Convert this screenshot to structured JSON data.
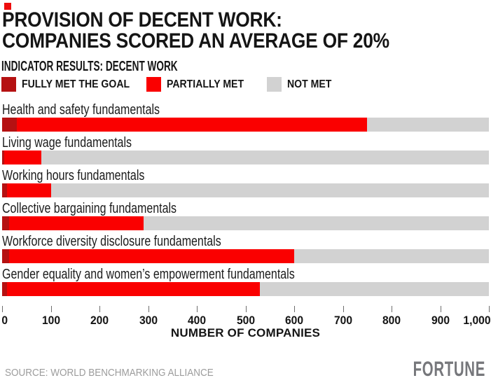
{
  "brand": {
    "square_color": "#ee0d0d",
    "logo_text": "FORTUNE"
  },
  "header": {
    "title_line1": "PROVISION OF DECENT WORK:",
    "title_line2": "COMPANIES SCORED AN AVERAGE OF 20%",
    "subhead": "INDICATOR RESULTS: DECENT WORK"
  },
  "legend": [
    {
      "label": "FULLY MET THE GOAL",
      "color": "#b51112"
    },
    {
      "label": "PARTIALLY MET",
      "color": "#fa0000"
    },
    {
      "label": "NOT MET",
      "color": "#d2d2d2"
    }
  ],
  "chart_data": {
    "type": "bar",
    "stacked": true,
    "horizontal": true,
    "title": "INDICATOR RESULTS: DECENT WORK",
    "categories": [
      "Health and safety fundamentals",
      "Living wage fundamentals",
      "Working hours fundamentals",
      "Collective bargaining fundamentals",
      "Workforce diversity disclosure fundamentals",
      "Gender equality and women’s empowerment fundamentals"
    ],
    "series": [
      {
        "name": "FULLY MET THE GOAL",
        "color": "#b51112",
        "values": [
          30,
          5,
          10,
          15,
          15,
          10
        ]
      },
      {
        "name": "PARTIALLY MET",
        "color": "#fa0000",
        "values": [
          720,
          75,
          90,
          275,
          585,
          520
        ]
      },
      {
        "name": "NOT MET",
        "color": "#d2d2d2",
        "values": [
          250,
          920,
          900,
          710,
          400,
          470
        ]
      }
    ],
    "xlabel": "NUMBER OF COMPANIES",
    "xlim": [
      0,
      1000
    ],
    "tick_values": [
      0,
      100,
      200,
      300,
      400,
      500,
      600,
      700,
      800,
      900,
      1000
    ],
    "tick_labels": [
      "0",
      "100",
      "200",
      "300",
      "400",
      "500",
      "600",
      "700",
      "800",
      "900",
      "1,000"
    ],
    "grid": false,
    "legend_position": "top"
  },
  "footer": {
    "source": "SOURCE: WORLD BENCHMARKING ALLIANCE",
    "logo": "FORTUNE"
  }
}
